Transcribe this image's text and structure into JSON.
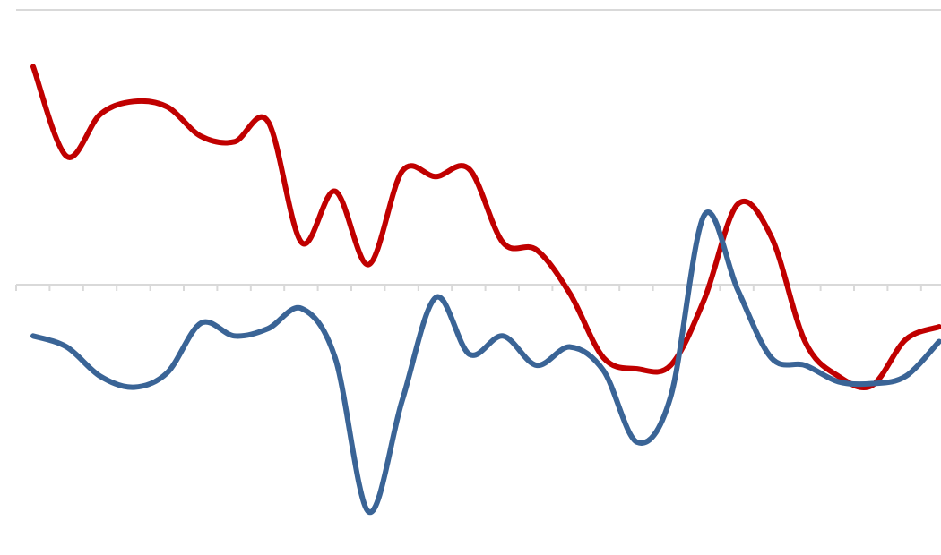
{
  "chart_data": {
    "type": "line",
    "title": "",
    "xlabel": "",
    "ylabel": "",
    "x_count": 28,
    "ylim": [
      -1.5,
      1.5
    ],
    "grid": true,
    "legend": "none",
    "smooth": true,
    "series": [
      {
        "color": "#c00000",
        "values": [
          1.19,
          0.7,
          0.93,
          1.0,
          0.97,
          0.81,
          0.78,
          0.89,
          0.23,
          0.51,
          0.11,
          0.62,
          0.59,
          0.63,
          0.23,
          0.19,
          -0.05,
          -0.4,
          -0.46,
          -0.44,
          -0.08,
          0.44,
          0.26,
          -0.31,
          -0.5,
          -0.55,
          -0.3,
          -0.23
        ]
      },
      {
        "color": "#3a6496",
        "values": [
          -0.28,
          -0.34,
          -0.5,
          -0.56,
          -0.48,
          -0.21,
          -0.28,
          -0.24,
          -0.13,
          -0.4,
          -1.24,
          -0.63,
          -0.07,
          -0.38,
          -0.28,
          -0.44,
          -0.34,
          -0.47,
          -0.86,
          -0.61,
          0.38,
          -0.03,
          -0.4,
          -0.44,
          -0.53,
          -0.54,
          -0.5,
          -0.31
        ]
      }
    ]
  }
}
